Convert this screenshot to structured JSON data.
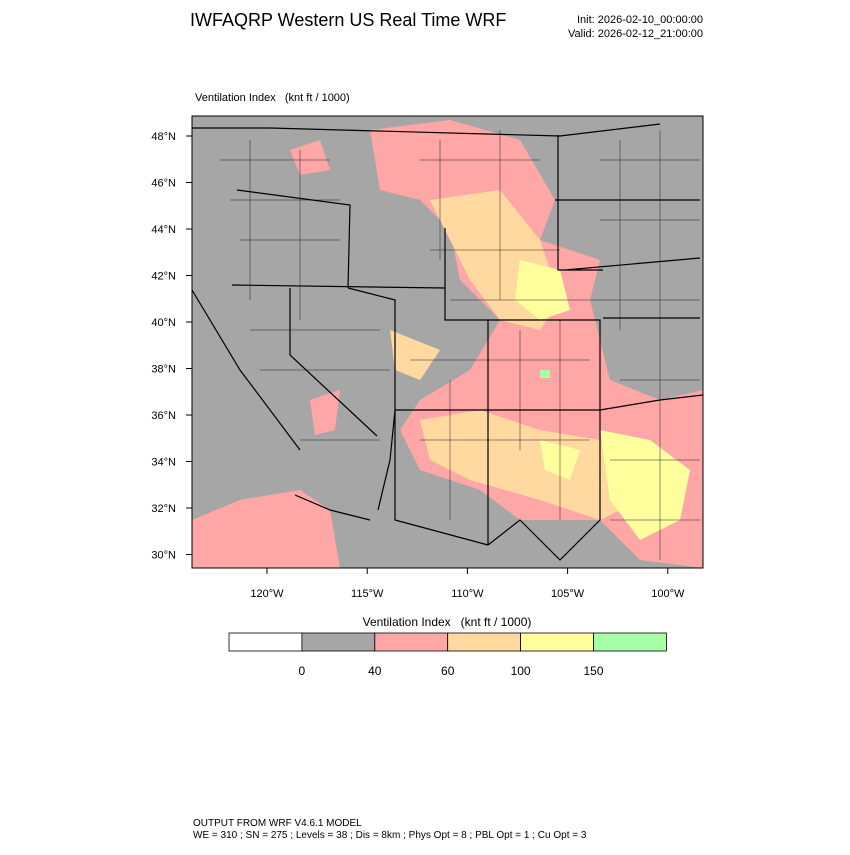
{
  "header": {
    "title": "IWFAQRP Western US Real Time WRF",
    "init": "Init: 2026-02-10_00:00:00",
    "valid": "Valid: 2026-02-12_21:00:00"
  },
  "map": {
    "label": "Ventilation Index   (knt ft / 1000)",
    "lat_labels": [
      "48°N",
      "46°N",
      "44°N",
      "42°N",
      "40°N",
      "38°N",
      "36°N",
      "34°N",
      "32°N",
      "30°N"
    ],
    "lon_labels": [
      "120°W",
      "115°W",
      "110°W",
      "105°W",
      "100°W"
    ]
  },
  "legend": {
    "title": "Ventilation Index   (knt ft / 1000)",
    "ticks": [
      0,
      40,
      60,
      100,
      150
    ],
    "colors": [
      "#ffffff",
      "#a6a6a6",
      "#ffa6a6",
      "#ffd9a0",
      "#ffff9e",
      "#a6ffa6"
    ]
  },
  "footer": {
    "line1": "OUTPUT FROM WRF V4.6.1 MODEL",
    "line2": "WE = 310 ; SN = 275 ; Levels = 38 ; Dis = 8km ; Phys Opt = 8 ; PBL Opt = 1 ; Cu Opt = 3"
  }
}
